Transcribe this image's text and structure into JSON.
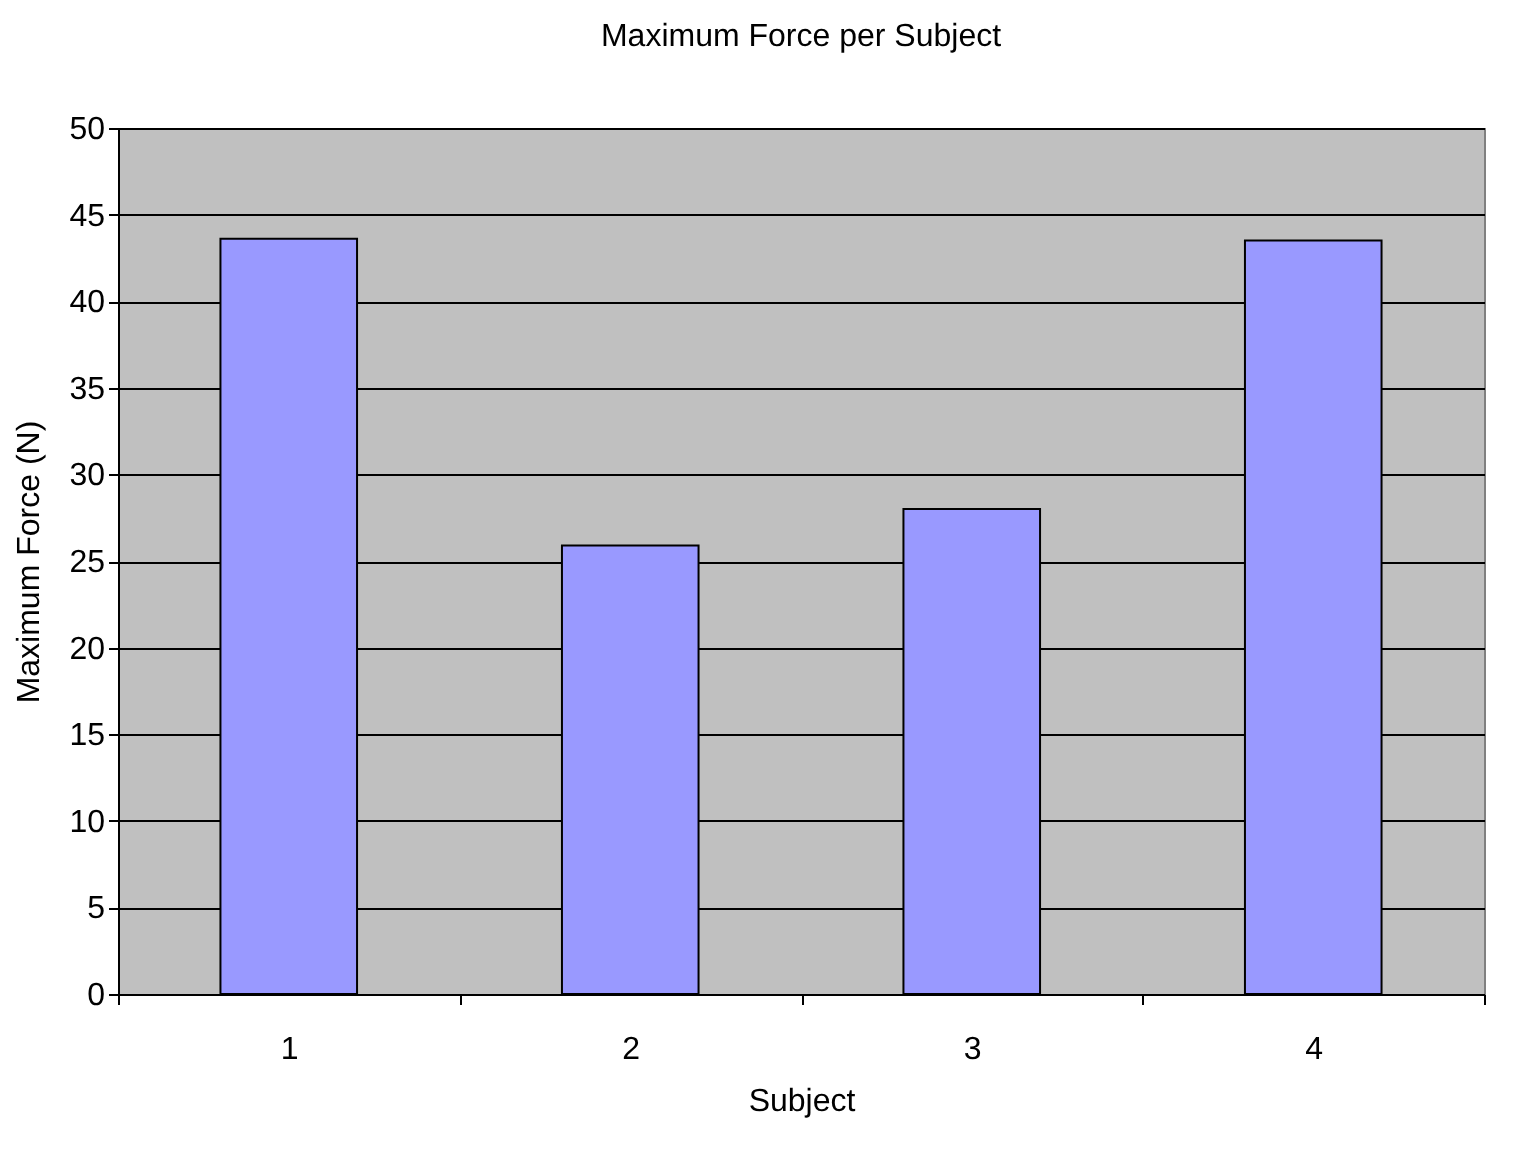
{
  "chart_data": {
    "type": "bar",
    "title": "Maximum Force per Subject",
    "xlabel": "Subject",
    "ylabel": "Maximum Force (N)",
    "categories": [
      "1",
      "2",
      "3",
      "4"
    ],
    "values": [
      43.6,
      25.9,
      28.0,
      43.5
    ],
    "color": "#9999ff",
    "ylim": [
      0,
      50
    ],
    "yticks": [
      0,
      5,
      10,
      15,
      20,
      25,
      30,
      35,
      40,
      45,
      50
    ],
    "grid": "y"
  }
}
